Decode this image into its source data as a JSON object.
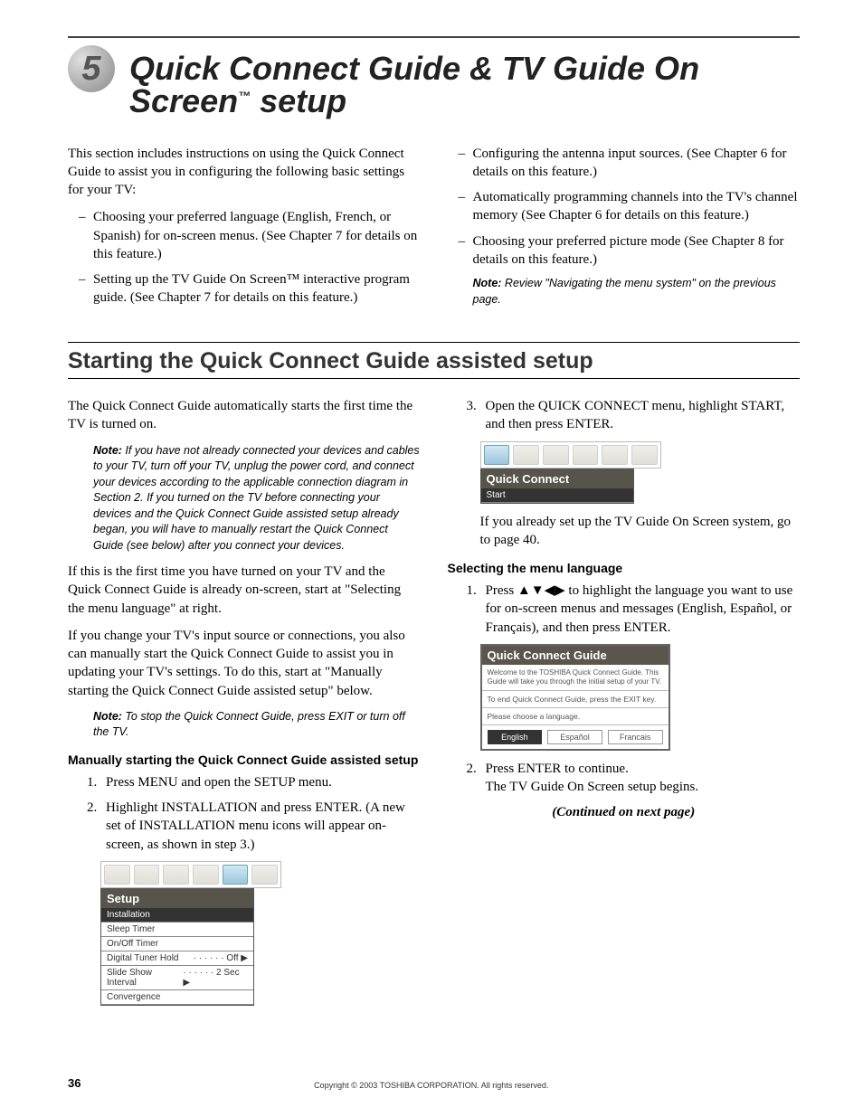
{
  "chapter": {
    "number": "5",
    "title_pre": "Quick Connect Guide & TV Guide On Screen",
    "title_tm": "™",
    "title_post": " setup"
  },
  "intro": {
    "lead": "This section includes instructions on using the Quick Connect Guide to assist you in configuring the following basic settings for your TV:",
    "bullets_left": [
      "Choosing your preferred language (English, French, or Spanish) for on-screen menus. (See Chapter 7 for details on this feature.)",
      "Setting up the TV Guide On Screen™ interactive program guide. (See Chapter 7 for details on this feature.)"
    ],
    "bullets_right": [
      "Configuring the antenna input sources. (See Chapter 6 for details on this feature.)",
      "Automatically programming channels into the TV's channel memory (See Chapter 6 for details on this feature.)",
      "Choosing your preferred picture mode (See Chapter 8 for details on this feature.)"
    ],
    "note_right": {
      "label": "Note:",
      "text": " Review \"Navigating the menu system\" on the previous page."
    }
  },
  "section": {
    "title": "Starting the Quick Connect Guide assisted setup"
  },
  "left": {
    "p1": "The Quick Connect Guide automatically starts the first time the TV is turned on.",
    "note1": {
      "label": "Note:",
      "text": " If you have not already connected your devices and cables to your TV, turn off your TV, unplug the power cord, and connect your devices according to the applicable connection diagram in Section 2. If you turned on the TV before connecting your devices and the Quick Connect Guide assisted setup already began, you will have to manually restart the Quick Connect Guide (see below) after you connect your devices."
    },
    "p2": "If this is the first time you have turned on your TV and the Quick Connect Guide is already on-screen, start at \"Selecting the menu language\" at right.",
    "p3": "If you change your TV's input source or connections, you also can manually start the Quick Connect Guide to assist you in updating your TV's settings. To do this, start at \"Manually starting the Quick Connect Guide assisted setup\" below.",
    "note2": {
      "label": "Note:",
      "text": " To stop the Quick Connect Guide, press EXIT or turn off the TV."
    },
    "sub": "Manually starting the Quick Connect Guide assisted setup",
    "steps": [
      "Press MENU and open the SETUP menu.",
      "Highlight INSTALLATION and press ENTER. (A new set of INSTALLATION menu icons will appear on-screen, as shown in step 3.)"
    ],
    "menu": {
      "title": "Setup",
      "items": [
        {
          "label": "Installation",
          "sel": true
        },
        {
          "label": "Sleep Timer"
        },
        {
          "label": "On/Off Timer"
        },
        {
          "label": "Digital Tuner Hold",
          "val": "Off",
          "arrow": true,
          "dots": true
        },
        {
          "label": "Slide Show Interval",
          "val": "2 Sec",
          "arrow": true,
          "dots": true
        },
        {
          "label": "Convergence"
        }
      ]
    }
  },
  "right": {
    "step3": "Open the QUICK CONNECT menu, highlight START, and then press ENTER.",
    "qc_small": {
      "title": "Quick Connect",
      "item": "Start"
    },
    "p_after": "If you already set up the TV Guide On Screen system, go to page 40.",
    "sub": "Selecting the menu language",
    "step1": "Press ▲▼◀▶ to highlight the language you want to use for on-screen menus and messages (English, Español, or Français), and then press ENTER.",
    "qc_guide": {
      "title": "Quick Connect Guide",
      "body": "Welcome to the TOSHIBA Quick Connect Guide. This Guide will take you through the initial setup of your TV.",
      "line2": "To end Quick Connect Guide, press the EXIT key.",
      "line3": "Please choose a language.",
      "buttons": [
        "English",
        "Español",
        "Francais"
      ],
      "selected": 0
    },
    "step2a": "Press ENTER to continue.",
    "step2b": "The TV Guide On Screen setup begins.",
    "cont": "(Continued on next page)"
  },
  "footer": {
    "page": "36",
    "copyright": "Copyright © 2003 TOSHIBA CORPORATION. All rights reserved."
  }
}
